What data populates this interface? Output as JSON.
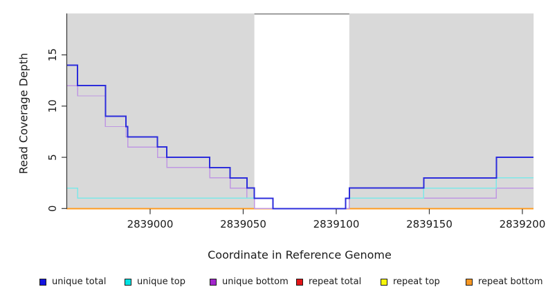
{
  "chart_data": {
    "type": "line",
    "subtype": "step",
    "title": "",
    "xlabel": "Coordinate in Reference Genome",
    "ylabel": "Read Coverage Depth",
    "xlim": [
      2838955,
      2839206
    ],
    "ylim": [
      0,
      19
    ],
    "x_ticks": [
      2839000,
      2839050,
      2839100,
      2839150,
      2839200
    ],
    "y_ticks": [
      0,
      5,
      10,
      15
    ],
    "grid": false,
    "legend_position": "bottom",
    "background": {
      "panel_color": "#d9d9d9",
      "outer_color": "#ffffff",
      "gap_region": {
        "start": 2839056,
        "end": 2839107,
        "color": "#ffffff",
        "top_border_color": "#808080"
      }
    },
    "axis_color": "#333333",
    "tick_label_color": "#1a1a1a",
    "series": [
      {
        "name": "unique total",
        "color": "#1414e0",
        "line_color": "#2c2cdb",
        "width": 2,
        "steps": [
          [
            2838955,
            14
          ],
          [
            2838961,
            12
          ],
          [
            2838976,
            9
          ],
          [
            2838987,
            8
          ],
          [
            2838988,
            7
          ],
          [
            2839004,
            6
          ],
          [
            2839009,
            5
          ],
          [
            2839032,
            4
          ],
          [
            2839043,
            3
          ],
          [
            2839052,
            2
          ],
          [
            2839056,
            1
          ],
          [
            2839066,
            0
          ],
          [
            2839105,
            1
          ],
          [
            2839107,
            2
          ],
          [
            2839147,
            3
          ],
          [
            2839186,
            5
          ]
        ]
      },
      {
        "name": "unique top",
        "color": "#00e2e2",
        "line_color": "#7de8e8",
        "width": 1.4,
        "steps": [
          [
            2838955,
            2
          ],
          [
            2838961,
            1
          ],
          [
            2839066,
            0
          ],
          [
            2839105,
            1
          ],
          [
            2839147,
            2
          ],
          [
            2839186,
            3
          ]
        ]
      },
      {
        "name": "unique bottom",
        "color": "#a226cb",
        "line_color": "#bf97e2",
        "width": 1.4,
        "steps": [
          [
            2838955,
            12
          ],
          [
            2838961,
            11
          ],
          [
            2838976,
            8
          ],
          [
            2838987,
            7
          ],
          [
            2838988,
            6
          ],
          [
            2839004,
            5
          ],
          [
            2839009,
            4
          ],
          [
            2839032,
            3
          ],
          [
            2839043,
            2
          ],
          [
            2839052,
            1
          ],
          [
            2839056,
            0
          ],
          [
            2839107,
            1
          ],
          [
            2839186,
            2
          ]
        ]
      },
      {
        "name": "repeat total",
        "color": "#e21417",
        "line_color": "#e21417",
        "width": 1.4,
        "steps": [
          [
            2838955,
            0
          ]
        ]
      },
      {
        "name": "repeat top",
        "color": "#f5f50c",
        "line_color": "#f5f50c",
        "width": 1.4,
        "steps": [
          [
            2838955,
            0
          ]
        ]
      },
      {
        "name": "repeat bottom",
        "color": "#f79723",
        "line_color": "#ff9a1e",
        "width": 2,
        "steps": [
          [
            2838955,
            0
          ]
        ]
      }
    ],
    "draw_order": [
      "repeat total",
      "repeat top",
      "repeat bottom",
      "unique bottom",
      "unique top",
      "unique total"
    ]
  },
  "legend": {
    "items": [
      {
        "label": "unique total",
        "color": "#1414e0"
      },
      {
        "label": "unique top",
        "color": "#00e2e2"
      },
      {
        "label": "unique bottom",
        "color": "#a226cb"
      },
      {
        "label": "repeat total",
        "color": "#e21417"
      },
      {
        "label": "repeat top",
        "color": "#f5f50c"
      },
      {
        "label": "repeat bottom",
        "color": "#f79723"
      }
    ]
  }
}
